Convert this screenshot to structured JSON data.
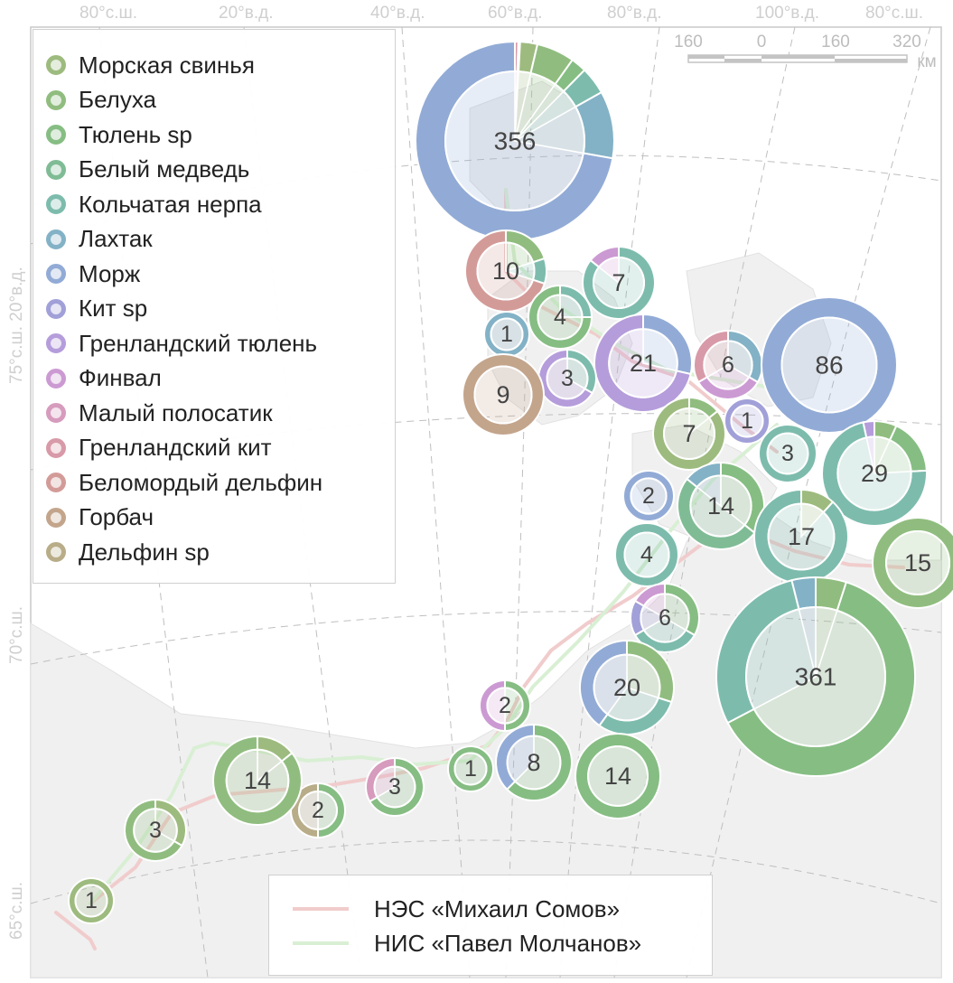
{
  "grid_labels": {
    "top": [
      "80°с.ш.",
      "20°в.д.",
      "40°в.д.",
      "60°в.д.",
      "80°в.д.",
      "100°в.д.",
      "80°с.ш."
    ],
    "left": [
      "75°с.ш. 20°в.д.",
      "70°с.ш.",
      "65°с.ш."
    ]
  },
  "scale_bar": {
    "ticks": [
      "160",
      "0",
      "160",
      "320"
    ],
    "unit": "км"
  },
  "species": [
    {
      "name": "Морская свинья",
      "color": "#9dbb7e"
    },
    {
      "name": "Белуха",
      "color": "#90bd7f"
    },
    {
      "name": "Тюлень sp",
      "color": "#86bd83"
    },
    {
      "name": "Белый медведь",
      "color": "#7fbc95"
    },
    {
      "name": "Кольчатая нерпа",
      "color": "#7dbcad"
    },
    {
      "name": "Лахтак",
      "color": "#83b2c6"
    },
    {
      "name": "Морж",
      "color": "#92abd6"
    },
    {
      "name": "Кит sp",
      "color": "#a1a0d8"
    },
    {
      "name": "Гренландский тюлень",
      "color": "#b59ddb"
    },
    {
      "name": "Финвал",
      "color": "#cc9ad3"
    },
    {
      "name": "Малый полосатик",
      "color": "#d69bbd"
    },
    {
      "name": "Гренландский кит",
      "color": "#d89aa8"
    },
    {
      "name": "Беломордый дельфин",
      "color": "#d39b98"
    },
    {
      "name": "Горбач",
      "color": "#c3a58c"
    },
    {
      "name": "Дельфин sp",
      "color": "#b8ad88"
    }
  ],
  "routes": [
    {
      "name": "НЭС «Михаил Сомов»",
      "color": "#f1cccc"
    },
    {
      "name": "НИС «Павел Молчанов»",
      "color": "#d9efd4"
    }
  ],
  "pies": [
    {
      "label": "356",
      "total": 356,
      "slices": [
        {
          "s": 11,
          "v": 2
        },
        {
          "s": 10,
          "v": 1
        },
        {
          "s": 0,
          "v": 10
        },
        {
          "s": 1,
          "v": 22
        },
        {
          "s": 2,
          "v": 9
        },
        {
          "s": 4,
          "v": 16
        },
        {
          "s": 5,
          "v": 39
        },
        {
          "s": 6,
          "v": 257
        }
      ]
    },
    {
      "label": "10",
      "total": 10,
      "slices": [
        {
          "s": 1,
          "v": 2
        },
        {
          "s": 4,
          "v": 1
        },
        {
          "s": 12,
          "v": 7
        }
      ]
    },
    {
      "label": "7",
      "total": 7,
      "slices": [
        {
          "s": 4,
          "v": 6
        },
        {
          "s": 9,
          "v": 1
        }
      ]
    },
    {
      "label": "4",
      "total": 4,
      "slices": [
        {
          "s": 4,
          "v": 1
        },
        {
          "s": 2,
          "v": 3
        }
      ]
    },
    {
      "label": "1",
      "total": 1,
      "slices": [
        {
          "s": 5,
          "v": 1
        }
      ]
    },
    {
      "label": "21",
      "total": 21,
      "slices": [
        {
          "s": 6,
          "v": 6
        },
        {
          "s": 8,
          "v": 15
        }
      ]
    },
    {
      "label": "6",
      "total": 6,
      "slices": [
        {
          "s": 5,
          "v": 2
        },
        {
          "s": 9,
          "v": 2
        },
        {
          "s": 11,
          "v": 2
        }
      ]
    },
    {
      "label": "86",
      "total": 86,
      "slices": [
        {
          "s": 6,
          "v": 86
        }
      ]
    },
    {
      "label": "3",
      "total": 3,
      "slices": [
        {
          "s": 4,
          "v": 1
        },
        {
          "s": 8,
          "v": 2
        }
      ]
    },
    {
      "label": "9",
      "total": 9,
      "slices": [
        {
          "s": 13,
          "v": 9
        }
      ]
    },
    {
      "label": "1",
      "total": 1,
      "slices": [
        {
          "s": 7,
          "v": 1
        }
      ]
    },
    {
      "label": "7",
      "total": 7,
      "slices": [
        {
          "s": 1,
          "v": 1
        },
        {
          "s": 0,
          "v": 6
        }
      ]
    },
    {
      "label": "3",
      "total": 3,
      "slices": [
        {
          "s": 4,
          "v": 3
        }
      ]
    },
    {
      "label": "29",
      "total": 29,
      "slices": [
        {
          "s": 1,
          "v": 2
        },
        {
          "s": 2,
          "v": 5
        },
        {
          "s": 4,
          "v": 21
        },
        {
          "s": 8,
          "v": 1
        }
      ]
    },
    {
      "label": "2",
      "total": 2,
      "slices": [
        {
          "s": 6,
          "v": 2
        }
      ]
    },
    {
      "label": "14",
      "total": 14,
      "slices": [
        {
          "s": 2,
          "v": 5
        },
        {
          "s": 3,
          "v": 7
        },
        {
          "s": 5,
          "v": 2
        }
      ]
    },
    {
      "label": "17",
      "total": 17,
      "slices": [
        {
          "s": 0,
          "v": 2
        },
        {
          "s": 4,
          "v": 15
        }
      ]
    },
    {
      "label": "4",
      "total": 4,
      "slices": [
        {
          "s": 4,
          "v": 4
        }
      ]
    },
    {
      "label": "15",
      "total": 15,
      "slices": [
        {
          "s": 1,
          "v": 15
        }
      ]
    },
    {
      "label": "6",
      "total": 6,
      "slices": [
        {
          "s": 2,
          "v": 2
        },
        {
          "s": 4,
          "v": 2
        },
        {
          "s": 7,
          "v": 1
        },
        {
          "s": 9,
          "v": 1
        }
      ]
    },
    {
      "label": "361",
      "total": 361,
      "slices": [
        {
          "s": 1,
          "v": 18
        },
        {
          "s": 2,
          "v": 225
        },
        {
          "s": 4,
          "v": 104
        },
        {
          "s": 5,
          "v": 14
        }
      ]
    },
    {
      "label": "20",
      "total": 20,
      "slices": [
        {
          "s": 1,
          "v": 6
        },
        {
          "s": 4,
          "v": 6
        },
        {
          "s": 6,
          "v": 8
        }
      ]
    },
    {
      "label": "2",
      "total": 2,
      "slices": [
        {
          "s": 2,
          "v": 1
        },
        {
          "s": 9,
          "v": 1
        }
      ]
    },
    {
      "label": "8",
      "total": 8,
      "slices": [
        {
          "s": 2,
          "v": 5
        },
        {
          "s": 6,
          "v": 3
        }
      ]
    },
    {
      "label": "14",
      "total": 14,
      "slices": [
        {
          "s": 2,
          "v": 14
        }
      ]
    },
    {
      "label": "1",
      "total": 1,
      "slices": [
        {
          "s": 2,
          "v": 1
        }
      ]
    },
    {
      "label": "3",
      "total": 3,
      "slices": [
        {
          "s": 2,
          "v": 2
        },
        {
          "s": 10,
          "v": 1
        }
      ]
    },
    {
      "label": "2",
      "total": 2,
      "slices": [
        {
          "s": 2,
          "v": 1
        },
        {
          "s": 14,
          "v": 1
        }
      ]
    },
    {
      "label": "14",
      "total": 14,
      "slices": [
        {
          "s": 0,
          "v": 2
        },
        {
          "s": 1,
          "v": 12
        }
      ]
    },
    {
      "label": "3",
      "total": 3,
      "slices": [
        {
          "s": 0,
          "v": 1
        },
        {
          "s": 1,
          "v": 2
        }
      ]
    },
    {
      "label": "1",
      "total": 1,
      "slices": [
        {
          "s": 0,
          "v": 1
        }
      ]
    }
  ]
}
